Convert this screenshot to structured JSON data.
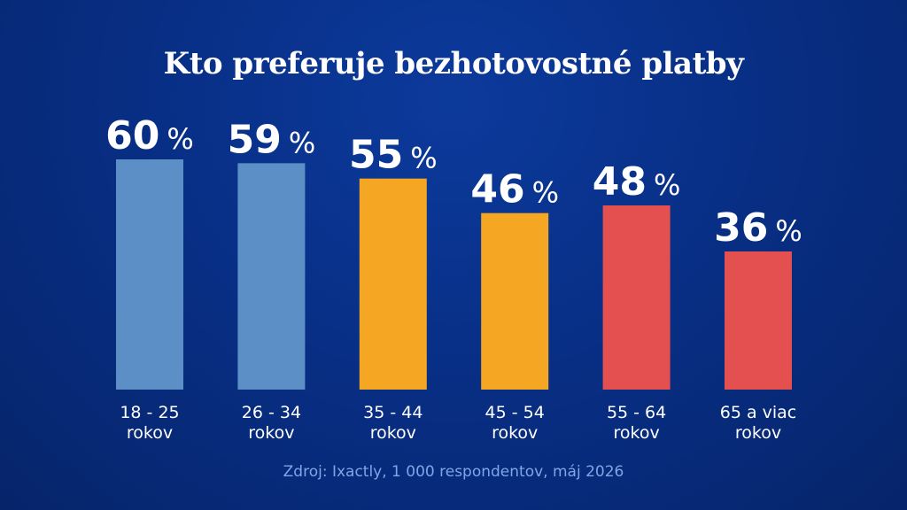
{
  "chart_data": {
    "type": "bar",
    "title": "Kto preferuje bezhotovostné platby",
    "categories": [
      [
        "18 - 25",
        "rokov"
      ],
      [
        "26 - 34",
        "rokov"
      ],
      [
        "35 - 44",
        "rokov"
      ],
      [
        "45 - 54",
        "rokov"
      ],
      [
        "55 - 64",
        "rokov"
      ],
      [
        "65 a viac",
        "rokov"
      ]
    ],
    "values": [
      60,
      59,
      55,
      46,
      48,
      36
    ],
    "value_labels": [
      "60",
      "59",
      "55",
      "46",
      "48",
      "36"
    ],
    "unit": "%",
    "colors": [
      "#5b8fc5",
      "#5b8fc5",
      "#f5a623",
      "#f5a623",
      "#e4504f",
      "#e4504f"
    ],
    "ylim": [
      0,
      60
    ],
    "grid": false,
    "legend": "none"
  },
  "source": "Zdroj: Ixactly, 1 000 respondentov, máj 2026"
}
